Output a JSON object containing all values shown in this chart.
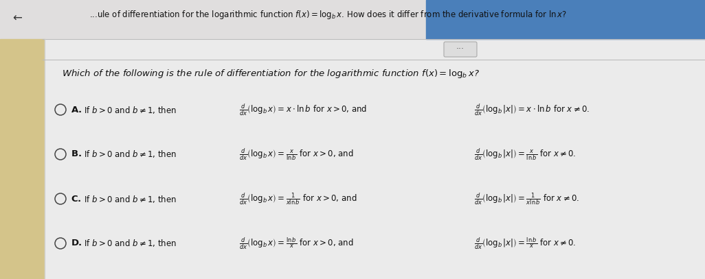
{
  "bg_color": "#e8e8e8",
  "main_bg": "#f0f0f0",
  "left_panel_color": "#c8b882",
  "header_strip_color": "#4a7fba",
  "text_color": "#1a1a1a",
  "circle_color": "#333333",
  "figsize": [
    10.26,
    4.07
  ],
  "dpi": 100,
  "header_text": "...ule of differentiation for the logarithmic function f(x) = log bx. How does it differ from the derivative formula for ln x?",
  "question_text": "Which of the following is the rule of differentiation for the logarithmic function f(x) = log_b x?",
  "options": [
    {
      "label": "A",
      "prefix": "If b > 0 and b ≠ 1, then",
      "f1": "$\\frac{d}{dx}\\left(\\log_b x\\right) = x\\cdot \\ln b$ for $x>0$, and",
      "f2": "$\\frac{d}{dx}\\left(\\log_b |x|\\right) = x\\cdot \\ln b$ for $x\\neq 0$."
    },
    {
      "label": "B",
      "prefix": "If b > 0 and b ≠ 1, then",
      "f1": "$\\frac{d}{dx}\\left(\\log_b x\\right) = \\frac{x}{\\ln b}$ for $x>0$, and",
      "f2": "$\\frac{d}{dx}\\left(\\log_b |x|\\right) = \\frac{x}{\\ln b}$ for $x\\neq 0$."
    },
    {
      "label": "C",
      "prefix": "If b > 0 and b ≠ 1, then",
      "f1": "$\\frac{d}{dx}\\left(\\log_b x\\right) = \\frac{1}{x\\ln b}$ for $x>0$, and",
      "f2": "$\\frac{d}{dx}\\left(\\log_b |x|\\right) = \\frac{1}{x\\ln b}$ for $x\\neq 0$."
    },
    {
      "label": "D",
      "prefix": "If b > 0 and b ≠ 1, then",
      "f1": "$\\frac{d}{dx}\\left(\\log_b x\\right) = \\frac{\\ln b}{x}$ for $x>0$, and",
      "f2": "$\\frac{d}{dx}\\left(\\log_b |x|\\right) = \\frac{\\ln b}{x}$ for $x\\neq 0$."
    }
  ]
}
